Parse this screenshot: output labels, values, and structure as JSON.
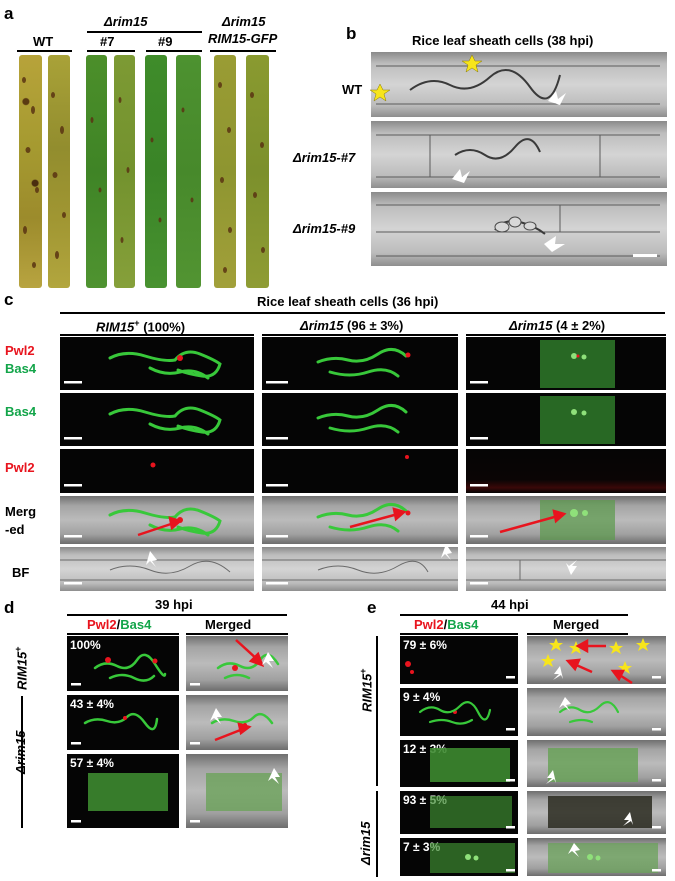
{
  "panels": {
    "a": {
      "label": "a",
      "groups": {
        "wt": "WT",
        "rim15": "Δrim15",
        "complement": "Δrim15",
        "complement_sub": "RIM15-GFP",
        "strain7": "#7",
        "strain9": "#9"
      }
    },
    "b": {
      "label": "b",
      "title": "Rice leaf sheath cells (38 hpi)",
      "rows": [
        "WT",
        "Δrim15-#7",
        "Δrim15-#9"
      ]
    },
    "c": {
      "label": "c",
      "title": "Rice leaf sheath cells (36 hpi)",
      "columns": [
        {
          "name": "RIM15",
          "sup": "+",
          "pct": "(100%)"
        },
        {
          "name": "Δrim15",
          "sup": "",
          "pct": "(96 ± 3%)"
        },
        {
          "name": "Δrim15",
          "sup": "",
          "pct": "(4 ± 2%)"
        }
      ],
      "row_labels": {
        "pwl2": "Pwl2",
        "bas4": "Bas4",
        "merged_a": "Merg",
        "merged_b": "-ed",
        "bf": "BF"
      }
    },
    "d": {
      "label": "d",
      "time": "39 hpi",
      "col1_a": "Pwl2",
      "col1_sep": "/",
      "col1_b": "Bas4",
      "col2": "Merged",
      "strain_top": "RIM15",
      "strain_top_sup": "+",
      "strain_bottom": "Δrim15",
      "percents": [
        "100%",
        "43 ± 4%",
        "57 ± 4%"
      ]
    },
    "e": {
      "label": "e",
      "time": "44 hpi",
      "col1_a": "Pwl2",
      "col1_sep": "/",
      "col1_b": "Bas4",
      "col2": "Merged",
      "strain_top": "RIM15",
      "strain_top_sup": "+",
      "strain_bottom": "Δrim15",
      "percents": [
        "79 ± 6%",
        "9 ± 4%",
        "12 ± 3%",
        "93 ± 5%",
        "7 ± 3%"
      ]
    }
  },
  "colors": {
    "red": "#e8141e",
    "green": "#13a54a",
    "hypha_green": "#38c83a",
    "star": "#f7e51b"
  }
}
